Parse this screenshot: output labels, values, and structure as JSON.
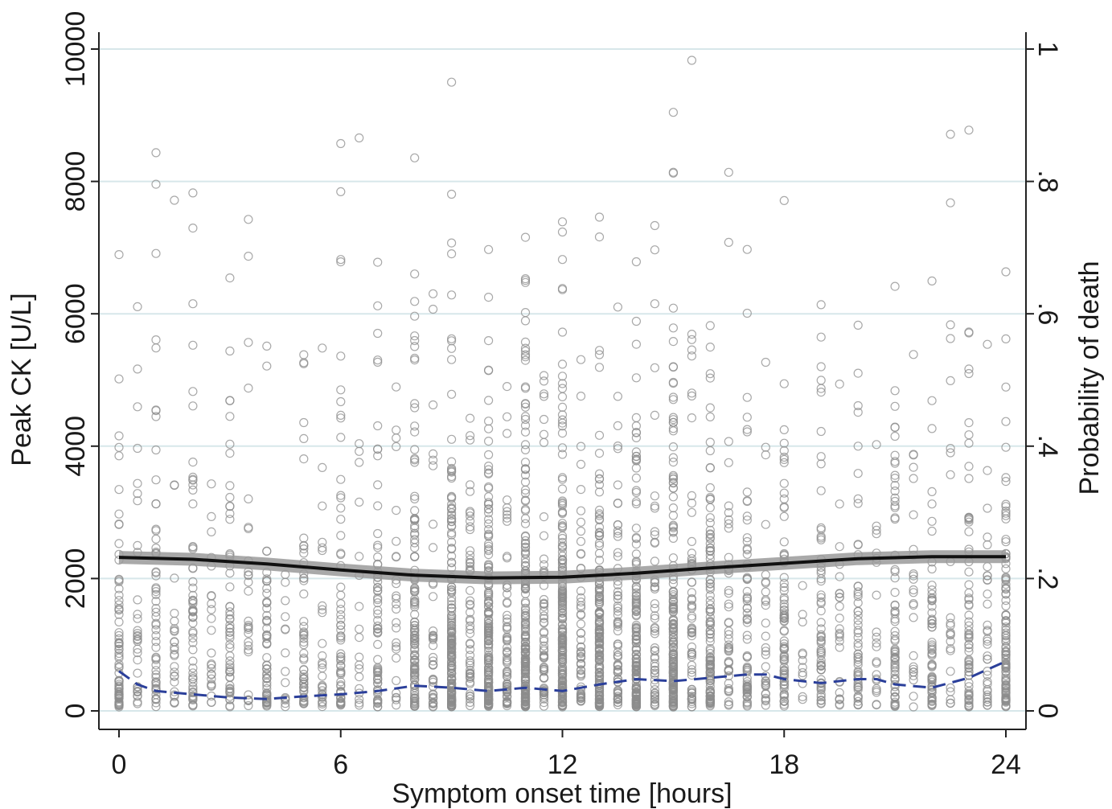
{
  "chart_data": {
    "type": "scatter",
    "title": "",
    "xlabel": "Symptom onset time [hours]",
    "ylabel": "Peak CK [U/L]",
    "y2label": "Probability of death",
    "xlim": [
      0,
      24
    ],
    "ylim": [
      0,
      10000
    ],
    "y2lim": [
      0,
      1
    ],
    "grid": true,
    "legend": "none",
    "x_ticks": [
      "0",
      "6",
      "12",
      "18",
      "24"
    ],
    "y_ticks": [
      "0",
      "2000",
      "4000",
      "6000",
      "8000",
      "10000"
    ],
    "y2_ticks": [
      "0",
      ".2",
      ".4",
      ".6",
      ".8",
      "1"
    ],
    "colors": {
      "points": "#8c8c8c",
      "ck_fit": "#111111",
      "ck_band": "#9a9a9a",
      "death_fit": "#2b3f9a",
      "grid": "#d7e7ea",
      "axis": "#222222"
    },
    "scatter_hours": [
      0,
      24
    ],
    "scatter_ck_median": 1500,
    "series": [
      {
        "values_axis": "left",
        "style": "solid",
        "x": [
          0,
          2,
          4,
          6,
          8,
          10,
          12,
          14,
          16,
          18,
          20,
          22,
          24
        ],
        "y": [
          2320,
          2290,
          2220,
          2130,
          2050,
          2010,
          2020,
          2080,
          2160,
          2230,
          2300,
          2330,
          2330
        ]
      },
      {
        "values_axis": "right",
        "style": "dashed",
        "x": [
          0,
          0.5,
          1,
          2,
          3,
          4,
          5,
          6,
          7,
          8,
          9,
          10,
          11,
          12,
          13,
          14,
          15,
          16,
          17,
          17.5,
          18,
          19,
          20,
          20.5,
          21,
          22,
          23,
          24
        ],
        "y": [
          0.06,
          0.04,
          0.03,
          0.025,
          0.02,
          0.018,
          0.022,
          0.025,
          0.03,
          0.038,
          0.035,
          0.03,
          0.035,
          0.03,
          0.04,
          0.048,
          0.045,
          0.05,
          0.055,
          0.055,
          0.048,
          0.042,
          0.048,
          0.048,
          0.04,
          0.035,
          0.05,
          0.075
        ]
      }
    ]
  }
}
